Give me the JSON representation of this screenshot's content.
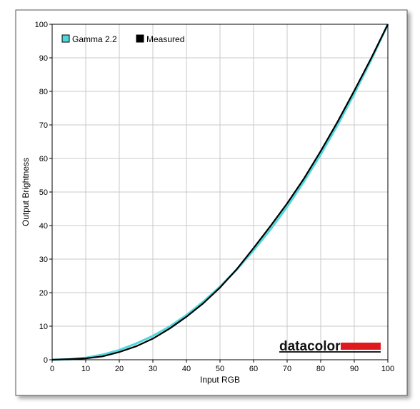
{
  "chart_data": {
    "type": "line",
    "xlabel": "Input RGB",
    "ylabel": "Output Brightness",
    "xlim": [
      0,
      100
    ],
    "ylim": [
      0,
      100
    ],
    "xticks": [
      0,
      10,
      20,
      30,
      40,
      50,
      60,
      70,
      80,
      90,
      100
    ],
    "yticks": [
      0,
      10,
      20,
      30,
      40,
      50,
      60,
      70,
      80,
      90,
      100
    ],
    "grid": true,
    "legend_position": "top-left",
    "series": [
      {
        "name": "Gamma 2.2",
        "color": "#4fd6dc",
        "x": [
          0,
          5,
          10,
          15,
          20,
          25,
          30,
          35,
          40,
          45,
          50,
          55,
          60,
          65,
          70,
          75,
          80,
          85,
          90,
          95,
          100
        ],
        "y": [
          0,
          0.1,
          0.6,
          1.5,
          2.9,
          4.8,
          7.1,
          9.9,
          13.3,
          17.3,
          21.8,
          26.9,
          32.6,
          38.8,
          45.6,
          53.1,
          61.2,
          69.9,
          79.3,
          89.3,
          100
        ]
      },
      {
        "name": "Measured",
        "color": "#000000",
        "x": [
          0,
          5,
          10,
          15,
          20,
          25,
          30,
          35,
          40,
          45,
          50,
          55,
          60,
          65,
          70,
          75,
          80,
          85,
          90,
          95,
          100
        ],
        "y": [
          0,
          0.2,
          0.4,
          1.0,
          2.3,
          4.0,
          6.3,
          9.3,
          12.8,
          16.8,
          21.5,
          27.0,
          33.3,
          39.8,
          46.6,
          54.0,
          62.2,
          70.9,
          80.2,
          89.8,
          100
        ]
      }
    ]
  },
  "brand": {
    "text": "datacolor",
    "bar_color": "#e0191e"
  }
}
